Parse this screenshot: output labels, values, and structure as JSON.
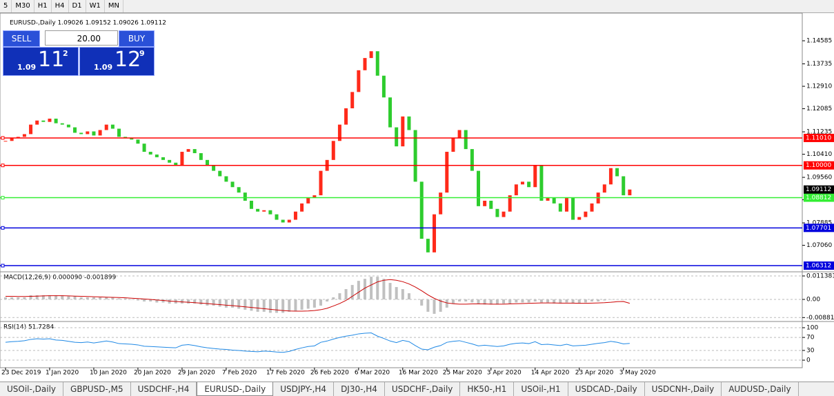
{
  "toolbar": {
    "timeframes": [
      "5",
      "M30",
      "H1",
      "H4",
      "D1",
      "W1",
      "MN"
    ]
  },
  "trade_panel": {
    "sell": "SELL",
    "buy": "BUY",
    "lot": "20.00",
    "bid": {
      "big": "1.09",
      "main": "11",
      "small": "2"
    },
    "ask": {
      "big": "1.09",
      "main": "12",
      "small": "9"
    }
  },
  "chart_data": [
    {
      "type": "candlestick",
      "title": "EURUSD-,Daily 1.09026 1.09152 1.09026 1.09112",
      "categories": [
        "23 Dec 2019",
        null,
        null,
        null,
        null,
        null,
        null,
        "1 Jan 2020",
        null,
        null,
        null,
        null,
        null,
        null,
        "10 Jan 2020",
        null,
        null,
        null,
        null,
        null,
        null,
        "20 Jan 2020",
        null,
        null,
        null,
        null,
        null,
        null,
        "29 Jan 2020",
        null,
        null,
        null,
        null,
        null,
        null,
        "7 Feb 2020",
        null,
        null,
        null,
        null,
        null,
        null,
        "17 Feb 2020",
        null,
        null,
        null,
        null,
        null,
        null,
        "26 Feb 2020",
        null,
        null,
        null,
        null,
        null,
        null,
        "6 Mar 2020",
        null,
        null,
        null,
        null,
        null,
        null,
        "16 Mar 2020",
        null,
        null,
        null,
        null,
        null,
        null,
        "25 Mar 2020",
        null,
        null,
        null,
        null,
        null,
        null,
        "3 Apr 2020",
        null,
        null,
        null,
        null,
        null,
        null,
        "14 Apr 2020",
        null,
        null,
        null,
        null,
        null,
        null,
        "23 Apr 2020",
        null,
        null,
        null,
        null,
        null,
        null,
        "3 May 2020",
        null
      ],
      "values": [
        1.109,
        1.11,
        1.1105,
        1.1115,
        1.115,
        1.1165,
        1.116,
        1.1172,
        1.1155,
        1.115,
        1.114,
        1.112,
        1.1115,
        1.1125,
        1.111,
        1.113,
        1.115,
        1.1135,
        1.1105,
        1.11,
        1.1095,
        1.108,
        1.105,
        1.104,
        1.103,
        1.102,
        1.101,
        1.1,
        1.105,
        1.106,
        1.1045,
        1.102,
        1.1,
        1.098,
        1.096,
        1.094,
        1.092,
        1.09,
        1.087,
        1.084,
        1.083,
        1.0835,
        1.082,
        1.08,
        1.079,
        1.08,
        1.083,
        1.086,
        1.088,
        1.089,
        1.098,
        1.102,
        1.109,
        1.115,
        1.121,
        1.127,
        1.135,
        1.1395,
        1.142,
        1.133,
        1.125,
        1.114,
        1.107,
        1.118,
        1.113,
        1.094,
        1.073,
        1.068,
        1.082,
        1.09,
        1.105,
        1.11,
        1.113,
        1.106,
        1.098,
        1.085,
        1.087,
        1.084,
        1.081,
        1.083,
        1.089,
        1.093,
        1.094,
        1.092,
        1.1,
        1.087,
        1.088,
        1.086,
        1.083,
        1.088,
        1.08,
        1.081,
        1.083,
        1.086,
        1.09,
        1.093,
        1.099,
        1.096,
        1.089,
        1.09112
      ],
      "bull_color": "#ff2a1a",
      "bear_color": "#2ecc2e",
      "ylim": [
        1.0611,
        1.1545
      ],
      "yticks": [
        1.14585,
        1.13735,
        {
          "value": 1.1291,
          "label": "1.12910"
        },
        1.12085,
        1.11235,
        {
          "value": 1.1041,
          "label": "1.10410"
        },
        {
          "value": 1.0956,
          "label": "1.09560"
        },
        1.08735,
        1.07885,
        {
          "value": 1.0706,
          "label": "1.07060"
        }
      ],
      "hlines": [
        {
          "value": {
            "value": 1.1101,
            "label": "1.11010"
          },
          "color": "#ff0000"
        },
        {
          "value": {
            "value": 1.1,
            "label": "1.10000"
          },
          "color": "#ff0000"
        },
        {
          "value": 1.08812,
          "color": "#33ee33"
        },
        {
          "value": 1.07701,
          "color": "#0000dd"
        },
        {
          "value": 1.06312,
          "color": "#0000dd"
        }
      ],
      "current_price": 1.09112
    },
    {
      "type": "macd",
      "title": "MACD(12,26,9) 0.000090 -0.001899",
      "values": [
        0.001,
        0.001,
        0.001,
        0.001,
        0.002,
        0.002,
        0.002,
        0.002,
        0.002,
        0.002,
        0.0015,
        0.0015,
        0.001,
        0.001,
        0.001,
        0.001,
        0.001,
        0.001,
        0.0005,
        0.0005,
        0,
        -0.0005,
        -0.001,
        -0.001,
        -0.0015,
        -0.0015,
        -0.002,
        -0.002,
        -0.002,
        -0.002,
        -0.002,
        -0.0025,
        -0.003,
        -0.003,
        -0.0035,
        -0.004,
        -0.004,
        -0.0045,
        -0.005,
        -0.0055,
        -0.006,
        -0.006,
        -0.0065,
        -0.0065,
        -0.0065,
        -0.006,
        -0.0055,
        -0.005,
        -0.0045,
        -0.004,
        -0.003,
        -0.001,
        0.001,
        0.003,
        0.005,
        0.007,
        0.009,
        0.01,
        0.011,
        0.011,
        0.01,
        0.008,
        0.006,
        0.005,
        0.003,
        0,
        -0.003,
        -0.006,
        -0.007,
        -0.006,
        -0.004,
        -0.002,
        -0.001,
        -0.001,
        -0.0015,
        -0.002,
        -0.0025,
        -0.0025,
        -0.0025,
        -0.002,
        -0.002,
        -0.0015,
        -0.0015,
        -0.0015,
        -0.001,
        -0.0015,
        -0.0015,
        -0.002,
        -0.002,
        -0.0015,
        -0.002,
        -0.002,
        -0.0015,
        -0.001,
        -0.001,
        -0.0005,
        0,
        0,
        0,
        9e-05
      ],
      "signal": [
        0.0015,
        0.0015,
        0.0014,
        0.0014,
        0.0015,
        0.0016,
        0.0017,
        0.0018,
        0.0018,
        0.0018,
        0.0017,
        0.0016,
        0.0015,
        0.0014,
        0.0013,
        0.0012,
        0.0011,
        0.001,
        0.0009,
        0.0008,
        0.0006,
        0.0004,
        0.0002,
        0,
        -0.0003,
        -0.0005,
        -0.0008,
        -0.001,
        -0.0012,
        -0.0014,
        -0.0016,
        -0.0018,
        -0.002,
        -0.0023,
        -0.0025,
        -0.0028,
        -0.003,
        -0.0033,
        -0.0036,
        -0.0039,
        -0.0042,
        -0.0045,
        -0.0048,
        -0.0051,
        -0.0054,
        -0.0056,
        -0.0057,
        -0.0057,
        -0.0056,
        -0.0054,
        -0.005,
        -0.0043,
        -0.0032,
        -0.002,
        -0.0005,
        0.0015,
        0.0035,
        0.0055,
        0.007,
        0.0085,
        0.0093,
        0.0096,
        0.0093,
        0.0086,
        0.0075,
        0.006,
        0.0042,
        0.0022,
        0.0005,
        -0.0008,
        -0.0017,
        -0.0021,
        -0.0023,
        -0.0023,
        -0.0022,
        -0.0022,
        -0.0022,
        -0.0023,
        -0.0023,
        -0.0023,
        -0.0022,
        -0.0021,
        -0.002,
        -0.0019,
        -0.0018,
        -0.0017,
        -0.0017,
        -0.0017,
        -0.0018,
        -0.0018,
        -0.0018,
        -0.0019,
        -0.0019,
        -0.0018,
        -0.0017,
        -0.0016,
        -0.0014,
        -0.0011,
        -0.001,
        -0.001899
      ],
      "color": "#c0c0c0",
      "signal_color": "#cc0000",
      "ylim": [
        -0.01038,
        0.01305
      ],
      "yticks": [
        0.011381,
        {
          "value": 0,
          "label": "0.00"
        },
        -0.00881
      ]
    },
    {
      "type": "line",
      "title": "RSI(14) 51.7284",
      "values": [
        55,
        57,
        58,
        60,
        64,
        66,
        65,
        66,
        62,
        61,
        58,
        55,
        54,
        56,
        53,
        56,
        59,
        56,
        51,
        50,
        49,
        47,
        43,
        42,
        41,
        40,
        39,
        38,
        46,
        48,
        45,
        41,
        38,
        36,
        34,
        33,
        31,
        30,
        28,
        27,
        26,
        28,
        27,
        25,
        24,
        27,
        33,
        38,
        42,
        44,
        55,
        59,
        65,
        70,
        74,
        77,
        81,
        83,
        84,
        74,
        67,
        59,
        54,
        61,
        57,
        45,
        34,
        32,
        40,
        45,
        55,
        58,
        60,
        55,
        50,
        44,
        46,
        44,
        42,
        44,
        49,
        52,
        53,
        51,
        57,
        48,
        49,
        47,
        45,
        49,
        44,
        45,
        46,
        49,
        52,
        54,
        58,
        55,
        50,
        51.7284
      ],
      "color": "#1e88e5",
      "ylim": [
        -19,
        117
      ],
      "yticks": [
        100,
        70,
        30,
        0
      ]
    }
  ],
  "tabs": [
    "USOil-,Daily",
    "GBPUSD-,M5",
    "USDCHF-,H4",
    "EURUSD-,Daily",
    "USDJPY-,H4",
    "DJ30-,H4",
    "USDCHF-,Daily",
    "HK50-,H1",
    "USOil-,H1",
    "USDCAD-,Daily",
    "USDCNH-,Daily",
    "AUDUSD-,Daily"
  ]
}
